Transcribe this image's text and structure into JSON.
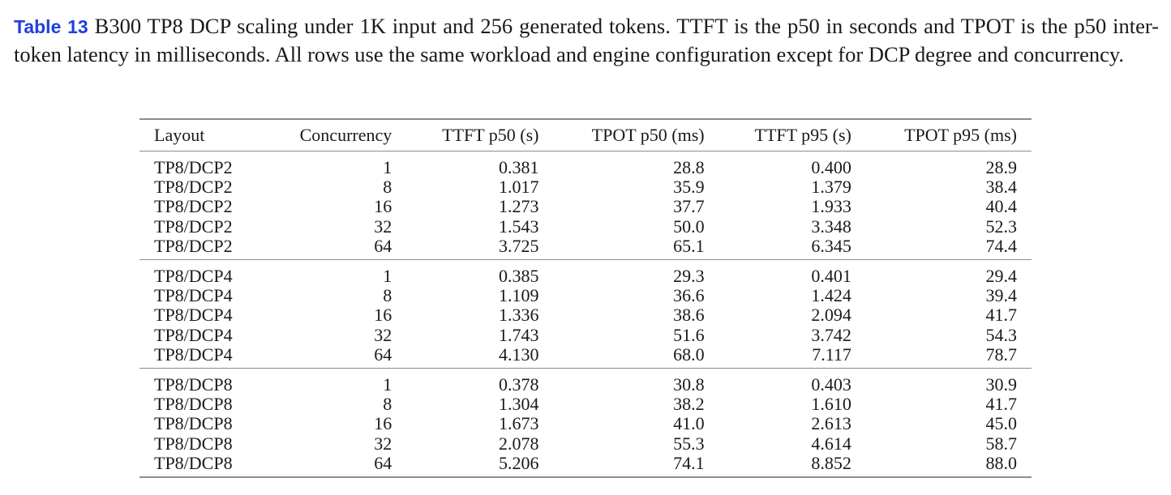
{
  "caption": {
    "label": "Table 13",
    "text": "B300 TP8 DCP scaling under 1K input and 256 generated tokens. TTFT is the p50 in seconds and TPOT is the p50 inter-token latency in milliseconds. All rows use the same workload and engine configuration except for DCP degree and concurrency."
  },
  "table": {
    "headers": [
      "Layout",
      "Concurrency",
      "TTFT p50 (s)",
      "TPOT p50 (ms)",
      "TTFT p95 (s)",
      "TPOT p95 (ms)"
    ],
    "groups": [
      {
        "rows": [
          [
            "TP8/DCP2",
            "1",
            "0.381",
            "28.8",
            "0.400",
            "28.9"
          ],
          [
            "TP8/DCP2",
            "8",
            "1.017",
            "35.9",
            "1.379",
            "38.4"
          ],
          [
            "TP8/DCP2",
            "16",
            "1.273",
            "37.7",
            "1.933",
            "40.4"
          ],
          [
            "TP8/DCP2",
            "32",
            "1.543",
            "50.0",
            "3.348",
            "52.3"
          ],
          [
            "TP8/DCP2",
            "64",
            "3.725",
            "65.1",
            "6.345",
            "74.4"
          ]
        ]
      },
      {
        "rows": [
          [
            "TP8/DCP4",
            "1",
            "0.385",
            "29.3",
            "0.401",
            "29.4"
          ],
          [
            "TP8/DCP4",
            "8",
            "1.109",
            "36.6",
            "1.424",
            "39.4"
          ],
          [
            "TP8/DCP4",
            "16",
            "1.336",
            "38.6",
            "2.094",
            "41.7"
          ],
          [
            "TP8/DCP4",
            "32",
            "1.743",
            "51.6",
            "3.742",
            "54.3"
          ],
          [
            "TP8/DCP4",
            "64",
            "4.130",
            "68.0",
            "7.117",
            "78.7"
          ]
        ]
      },
      {
        "rows": [
          [
            "TP8/DCP8",
            "1",
            "0.378",
            "30.8",
            "0.403",
            "30.9"
          ],
          [
            "TP8/DCP8",
            "8",
            "1.304",
            "38.2",
            "1.610",
            "41.7"
          ],
          [
            "TP8/DCP8",
            "16",
            "1.673",
            "41.0",
            "2.613",
            "45.0"
          ],
          [
            "TP8/DCP8",
            "32",
            "2.078",
            "55.3",
            "4.614",
            "58.7"
          ],
          [
            "TP8/DCP8",
            "64",
            "5.206",
            "74.1",
            "8.852",
            "88.0"
          ]
        ]
      }
    ]
  }
}
